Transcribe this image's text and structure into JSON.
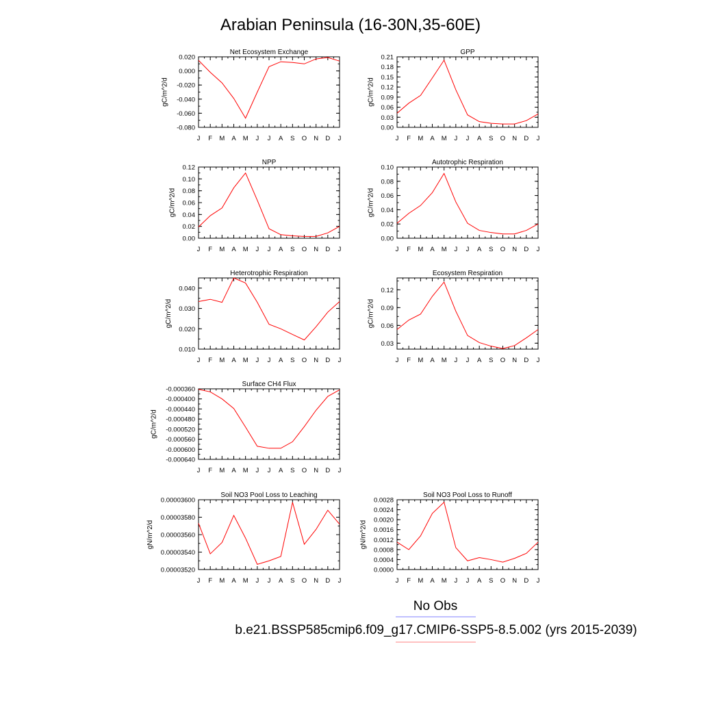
{
  "title": "Arabian Peninsula (16-30N,35-60E)",
  "months": [
    "J",
    "F",
    "M",
    "A",
    "M",
    "J",
    "J",
    "A",
    "S",
    "O",
    "N",
    "D",
    "J"
  ],
  "legend": [
    {
      "label": "No Obs",
      "color": "#8080ff"
    },
    {
      "label": "b.e21.BSSP585cmip6.f09_g17.CMIP6-SSP5-8.5.002 (yrs 2015-2039)",
      "color": "#ff8080"
    }
  ],
  "series_color": "#ff0000",
  "chart_data": [
    {
      "type": "line",
      "title": "Net Ecosystem Exchange",
      "ylabel": "gC/m^2/d",
      "ylim": [
        -0.08,
        0.02
      ],
      "yticks": [
        0.02,
        0.0,
        -0.02,
        -0.04,
        -0.06,
        -0.08
      ],
      "yticklabels": [
        "0.020",
        "0.000",
        "-0.020",
        "-0.040",
        "-0.060",
        "-0.080"
      ],
      "values": [
        0.015,
        -0.002,
        -0.017,
        -0.039,
        -0.067,
        -0.03,
        0.006,
        0.013,
        0.012,
        0.01,
        0.017,
        0.019,
        0.014
      ]
    },
    {
      "type": "line",
      "title": "GPP",
      "ylabel": "gC/m^2/d",
      "ylim": [
        0,
        0.21
      ],
      "yticks": [
        0.21,
        0.18,
        0.15,
        0.12,
        0.09,
        0.06,
        0.03,
        0.0
      ],
      "yticklabels": [
        "0.21",
        "0.18",
        "0.15",
        "0.12",
        "0.09",
        "0.06",
        "0.03",
        "0.00"
      ],
      "values": [
        0.042,
        0.072,
        0.095,
        0.147,
        0.2,
        0.112,
        0.037,
        0.017,
        0.012,
        0.01,
        0.01,
        0.02,
        0.04
      ]
    },
    {
      "type": "line",
      "title": "NPP",
      "ylabel": "gC/m^2/d",
      "ylim": [
        0,
        0.12
      ],
      "yticks": [
        0.12,
        0.1,
        0.08,
        0.06,
        0.04,
        0.02,
        0.0
      ],
      "yticklabels": [
        "0.12",
        "0.10",
        "0.08",
        "0.06",
        "0.04",
        "0.02",
        "0.00"
      ],
      "values": [
        0.019,
        0.038,
        0.051,
        0.085,
        0.11,
        0.064,
        0.016,
        0.006,
        0.004,
        0.003,
        0.003,
        0.009,
        0.02
      ]
    },
    {
      "type": "line",
      "title": "Autotrophic Respiration",
      "ylabel": "gC/m^2/d",
      "ylim": [
        0,
        0.1
      ],
      "yticks": [
        0.1,
        0.08,
        0.06,
        0.04,
        0.02,
        0.0
      ],
      "yticklabels": [
        "0.10",
        "0.08",
        "0.06",
        "0.04",
        "0.02",
        "0.00"
      ],
      "values": [
        0.021,
        0.035,
        0.046,
        0.064,
        0.091,
        0.051,
        0.021,
        0.011,
        0.008,
        0.006,
        0.006,
        0.011,
        0.02
      ]
    },
    {
      "type": "line",
      "title": "Heterotrophic Respiration",
      "ylabel": "gC/m^2/d",
      "ylim": [
        0.01,
        0.045
      ],
      "yticks": [
        0.04,
        0.03,
        0.02,
        0.01
      ],
      "yticklabels": [
        "0.040",
        "0.030",
        "0.020",
        "0.010"
      ],
      "values": [
        0.0334,
        0.0345,
        0.033,
        0.045,
        0.0425,
        0.033,
        0.0222,
        0.02,
        0.0172,
        0.0145,
        0.021,
        0.0282,
        0.0334
      ]
    },
    {
      "type": "line",
      "title": "Ecosystem Respiration",
      "ylabel": "gC/m^2/d",
      "ylim": [
        0.02,
        0.14
      ],
      "yticks": [
        0.12,
        0.09,
        0.06,
        0.03
      ],
      "yticklabels": [
        "0.12",
        "0.09",
        "0.06",
        "0.03"
      ],
      "values": [
        0.053,
        0.069,
        0.079,
        0.109,
        0.133,
        0.084,
        0.043,
        0.031,
        0.025,
        0.021,
        0.026,
        0.039,
        0.053
      ]
    },
    {
      "type": "line",
      "title": "Surface CH4 Flux",
      "ylabel": "gC/m^2/d",
      "ylim": [
        -0.00064,
        -0.00036
      ],
      "yticks": [
        -0.00036,
        -0.0004,
        -0.00044,
        -0.00048,
        -0.00052,
        -0.00056,
        -0.0006,
        -0.00064
      ],
      "yticklabels": [
        "-0.000360",
        "-0.000400",
        "-0.000440",
        "-0.000480",
        "-0.000520",
        "-0.000560",
        "-0.000600",
        "-0.000640"
      ],
      "values": [
        -0.000362,
        -0.000372,
        -0.0004,
        -0.000438,
        -0.000512,
        -0.000588,
        -0.000596,
        -0.000596,
        -0.00057,
        -0.00051,
        -0.000445,
        -0.00039,
        -0.000364
      ]
    },
    {
      "type": "line",
      "title": "Soil NO3 Pool Loss to Leaching",
      "ylabel": "gN/m^2/d",
      "ylim": [
        3.52e-05,
        3.6e-05
      ],
      "yticks": [
        3.6e-05,
        3.58e-05,
        3.56e-05,
        3.54e-05,
        3.52e-05
      ],
      "yticklabels": [
        "0.00003600",
        "0.00003580",
        "0.00003560",
        "0.00003540",
        "0.00003520"
      ],
      "values": [
        3.573e-05,
        3.538e-05,
        3.551e-05,
        3.582e-05,
        3.556e-05,
        3.526e-05,
        3.53e-05,
        3.535e-05,
        3.597e-05,
        3.549e-05,
        3.566e-05,
        3.588e-05,
        3.572e-05
      ]
    },
    {
      "type": "line",
      "title": "Soil NO3 Pool Loss to Runoff",
      "ylabel": "gN/m^2/d",
      "ylim": [
        0,
        0.0028
      ],
      "yticks": [
        0.0028,
        0.0024,
        0.002,
        0.0016,
        0.0012,
        0.0008,
        0.0004,
        0.0
      ],
      "yticklabels": [
        "0.0028",
        "0.0024",
        "0.0020",
        "0.0016",
        "0.0012",
        "0.0008",
        "0.0004",
        "0.0000"
      ],
      "values": [
        0.0011,
        0.0008,
        0.00135,
        0.00225,
        0.0027,
        0.00088,
        0.00035,
        0.00048,
        0.0004,
        0.0003,
        0.00045,
        0.00065,
        0.0011
      ]
    }
  ]
}
